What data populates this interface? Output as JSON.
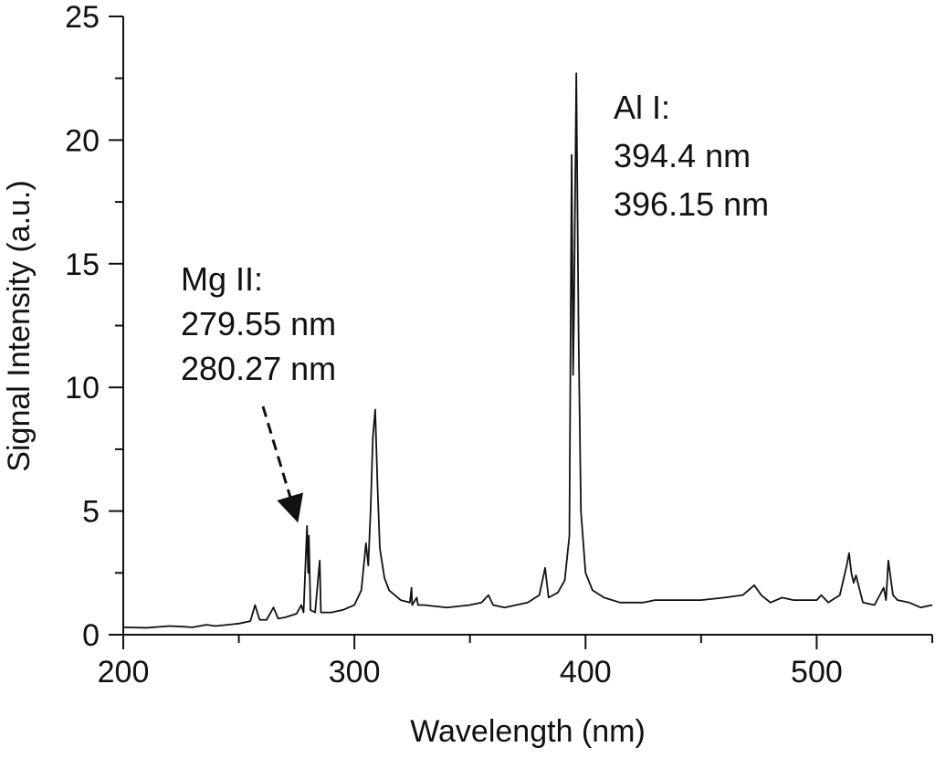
{
  "chart_data": {
    "type": "line",
    "xlabel": "Wavelength (nm)",
    "ylabel": "Signal Intensity (a.u.)",
    "color": "#111111",
    "xlim": [
      200,
      550
    ],
    "xticks": [
      200,
      300,
      400,
      500
    ],
    "minor_xticks": [
      250,
      350,
      450,
      550
    ],
    "ylim": [
      0,
      25
    ],
    "yticks": [
      0,
      5,
      10,
      15,
      20,
      25
    ],
    "minor_yticks": [
      2.5,
      7.5,
      12.5,
      17.5,
      22.5
    ],
    "annotations": [
      [
        "Mg II:",
        "279.55 nm",
        "280.27 nm"
      ],
      [
        "Al I:",
        "394.4 nm",
        "396.15 nm"
      ]
    ],
    "x": [
      200,
      210,
      220,
      225,
      230,
      236,
      240,
      250,
      255,
      257,
      259,
      262,
      265,
      267,
      270,
      275,
      277,
      278,
      279.5,
      280,
      280.3,
      281,
      283,
      285,
      285.5,
      290,
      295,
      300,
      303,
      305,
      306,
      307,
      308,
      309,
      310,
      311,
      313,
      315,
      320,
      324,
      324.7,
      325,
      327,
      327.5,
      330,
      340,
      350,
      355,
      358,
      360,
      365,
      375,
      380,
      382.5,
      384,
      388,
      391,
      393,
      394,
      394.6,
      395,
      396,
      397,
      398,
      400,
      403,
      408,
      415,
      425,
      430,
      440,
      450,
      460,
      468,
      473,
      476,
      480,
      485,
      490,
      500,
      502,
      505,
      510,
      513,
      514,
      515,
      516,
      517,
      520,
      525,
      529,
      530,
      531,
      533,
      535,
      540,
      545,
      550
    ],
    "values": [
      0.3,
      0.28,
      0.35,
      0.33,
      0.3,
      0.4,
      0.35,
      0.45,
      0.55,
      1.2,
      0.6,
      0.6,
      1.1,
      0.65,
      0.7,
      0.85,
      1.2,
      0.9,
      4.4,
      2.5,
      4.0,
      1.0,
      0.9,
      3.0,
      0.9,
      0.9,
      1.0,
      1.2,
      1.8,
      3.7,
      2.8,
      5.0,
      8.0,
      9.1,
      6.0,
      3.5,
      2.3,
      1.8,
      1.4,
      1.3,
      1.9,
      1.2,
      1.5,
      1.2,
      1.2,
      1.1,
      1.2,
      1.3,
      1.6,
      1.2,
      1.1,
      1.3,
      1.6,
      2.7,
      1.5,
      1.7,
      2.2,
      4.0,
      19.4,
      10.5,
      13.0,
      22.7,
      12.0,
      5.0,
      2.5,
      1.8,
      1.5,
      1.3,
      1.3,
      1.4,
      1.4,
      1.4,
      1.5,
      1.6,
      2.0,
      1.6,
      1.3,
      1.5,
      1.4,
      1.4,
      1.6,
      1.3,
      1.6,
      2.8,
      3.3,
      2.5,
      2.1,
      2.4,
      1.3,
      1.2,
      1.9,
      1.4,
      3.0,
      1.6,
      1.4,
      1.3,
      1.1,
      1.2
    ]
  }
}
